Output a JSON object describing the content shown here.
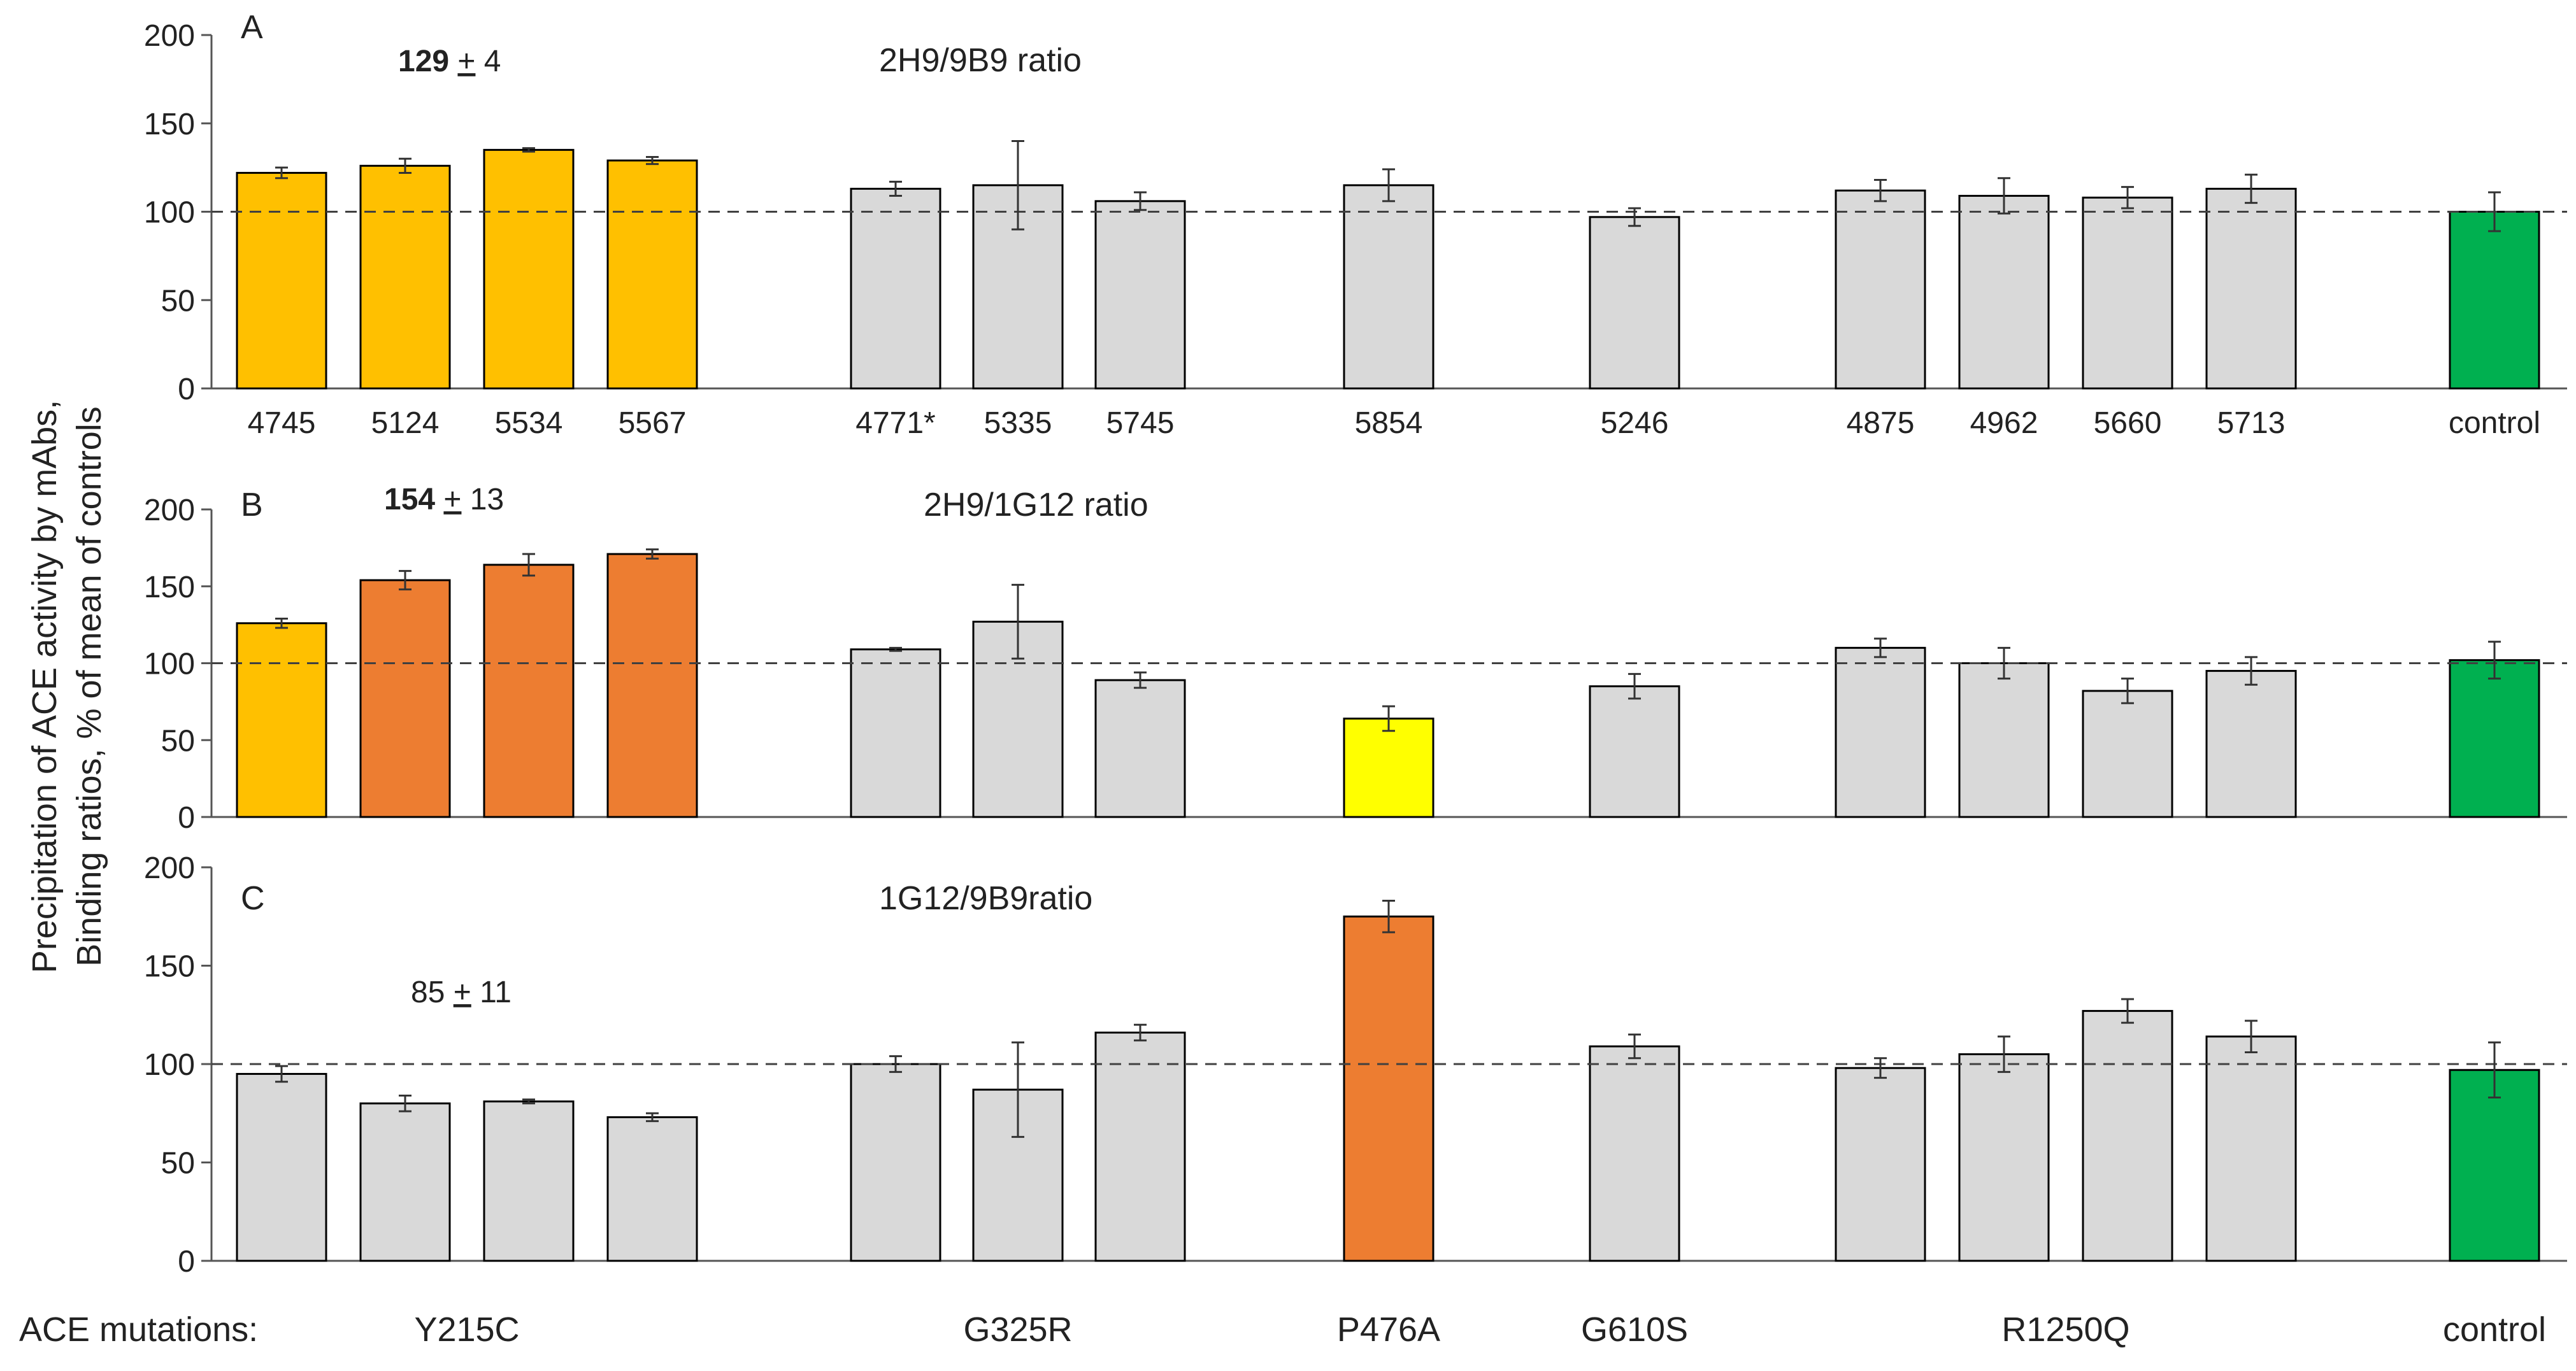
{
  "chart_data": {
    "type": "bar",
    "ylabel_line1": "Precipitation of ACE activity by mAbs,",
    "ylabel_line2": "Binding ratios, % of mean of controls",
    "reference_value": 100,
    "colors": {
      "grey": "#d9d9d9",
      "light_orange": "#ffc000",
      "dark_orange": "#ed7d31",
      "yellow": "#ffff00",
      "green": "#00b050",
      "stroke": "#000000",
      "dashed_line": "#404040"
    },
    "categories": [
      "4745",
      "5124",
      "5534",
      "5567",
      "4771*",
      "5335",
      "5745",
      "5854",
      "5246",
      "4875",
      "4962",
      "5660",
      "5713",
      "control"
    ],
    "groups": [
      {
        "label": "Y215C",
        "members": [
          0,
          1,
          2,
          3
        ]
      },
      {
        "label": "G325R",
        "members": [
          4,
          5,
          6
        ]
      },
      {
        "label": "P476A",
        "members": [
          7
        ]
      },
      {
        "label": "G610S",
        "members": [
          8
        ]
      },
      {
        "label": "R1250Q",
        "members": [
          9,
          10,
          11,
          12
        ]
      },
      {
        "label": "control",
        "members": [
          13
        ]
      }
    ],
    "group_axis_title": "ACE mutations:",
    "panels": [
      {
        "letter": "A",
        "title": "2H9/9B9 ratio",
        "annotation": {
          "bold": "129",
          "pm": "+",
          "rest": " 4"
        },
        "ylim": [
          0,
          200
        ],
        "yticks": [
          0,
          50,
          100,
          150,
          200
        ],
        "show_category_labels": true,
        "values": [
          122,
          126,
          135,
          129,
          113,
          115,
          106,
          115,
          97,
          112,
          109,
          108,
          113,
          100
        ],
        "errors": [
          3,
          4,
          1,
          2,
          4,
          25,
          5,
          9,
          5,
          6,
          10,
          6,
          8,
          11
        ],
        "colors": [
          "light_orange",
          "light_orange",
          "light_orange",
          "light_orange",
          "grey",
          "grey",
          "grey",
          "grey",
          "grey",
          "grey",
          "grey",
          "grey",
          "grey",
          "green"
        ]
      },
      {
        "letter": "B",
        "title": "2H9/1G12 ratio",
        "annotation": {
          "bold": "154",
          "pm": "+",
          "rest": " 13"
        },
        "ylim": [
          0,
          200
        ],
        "yticks": [
          0,
          50,
          100,
          150,
          200
        ],
        "show_category_labels": false,
        "values": [
          126,
          154,
          164,
          171,
          109,
          127,
          89,
          64,
          85,
          110,
          100,
          82,
          95,
          102
        ],
        "errors": [
          3,
          6,
          7,
          3,
          1,
          24,
          5,
          8,
          8,
          6,
          10,
          8,
          9,
          12
        ],
        "colors": [
          "light_orange",
          "dark_orange",
          "dark_orange",
          "dark_orange",
          "grey",
          "grey",
          "grey",
          "yellow",
          "grey",
          "grey",
          "grey",
          "grey",
          "grey",
          "green"
        ]
      },
      {
        "letter": "C",
        "title": "1G12/9B9ratio",
        "annotation": {
          "bold": "",
          "pm": "+",
          "rest": " 11",
          "lead": "85 "
        },
        "ylim": [
          0,
          200
        ],
        "yticks": [
          0,
          50,
          100,
          150,
          200
        ],
        "show_category_labels": false,
        "values": [
          95,
          80,
          81,
          73,
          100,
          87,
          116,
          175,
          109,
          98,
          105,
          127,
          114,
          97
        ],
        "errors": [
          4,
          4,
          1,
          2,
          4,
          24,
          4,
          8,
          6,
          5,
          9,
          6,
          8,
          14
        ],
        "colors": [
          "grey",
          "grey",
          "grey",
          "grey",
          "grey",
          "grey",
          "grey",
          "dark_orange",
          "grey",
          "grey",
          "grey",
          "grey",
          "grey",
          "green"
        ]
      }
    ]
  }
}
